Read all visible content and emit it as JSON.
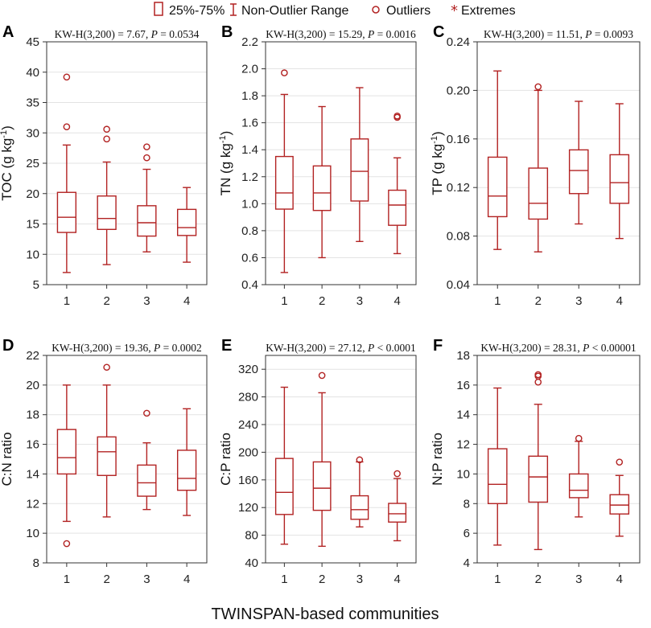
{
  "x_title": "TWINSPAN-based communities",
  "legend": [
    {
      "key": "box",
      "label": "25%-75%"
    },
    {
      "key": "whisker",
      "label": "Non-Outlier Range"
    },
    {
      "key": "outlier",
      "label": "Outliers"
    },
    {
      "key": "extreme",
      "label": "Extremes"
    }
  ],
  "colors": {
    "box": "#b22222",
    "grid": "#e3e3e3",
    "frame": "#333333"
  },
  "chart_data": [
    {
      "panel": "A",
      "type": "box",
      "ylabel": "TOC (g kg",
      "ylabel_sup": "-1",
      "ylabel_end": ")",
      "stat_prefix": "KW-H(3,200) = 7.67, ",
      "stat_p": "P",
      "stat_suffix": " = 0.0534",
      "ylim": [
        5,
        45
      ],
      "yticks": [
        5,
        10,
        15,
        20,
        25,
        30,
        35,
        40,
        45
      ],
      "ytick_labels": [
        "5",
        "10",
        "15",
        "20",
        "25",
        "30",
        "35",
        "40",
        "45"
      ],
      "categories": [
        "1",
        "2",
        "3",
        "4"
      ],
      "boxes": [
        {
          "min": 7.0,
          "q1": 13.6,
          "median": 16.1,
          "q3": 20.2,
          "max": 28.0,
          "outliers": [
            31.0,
            39.2
          ]
        },
        {
          "min": 8.3,
          "q1": 14.1,
          "median": 15.9,
          "q3": 19.6,
          "max": 25.2,
          "outliers": [
            29.0,
            30.6
          ]
        },
        {
          "min": 10.4,
          "q1": 13.0,
          "median": 15.2,
          "q3": 18.0,
          "max": 24.0,
          "outliers": [
            25.9,
            27.7
          ]
        },
        {
          "min": 8.7,
          "q1": 13.1,
          "median": 14.4,
          "q3": 17.4,
          "max": 21.0,
          "outliers": []
        }
      ]
    },
    {
      "panel": "B",
      "type": "box",
      "ylabel": "TN (g kg",
      "ylabel_sup": "-1",
      "ylabel_end": ")",
      "stat_prefix": "KW-H(3,200) = 15.29, ",
      "stat_p": "P",
      "stat_suffix": " = 0.0016",
      "ylim": [
        0.4,
        2.2
      ],
      "yticks": [
        0.4,
        0.6,
        0.8,
        1.0,
        1.2,
        1.4,
        1.6,
        1.8,
        2.0,
        2.2
      ],
      "ytick_labels": [
        "0.4",
        "0.6",
        "0.8",
        "1.0",
        "1.2",
        "1.4",
        "1.6",
        "1.8",
        "2.0",
        "2.2"
      ],
      "categories": [
        "1",
        "2",
        "3",
        "4"
      ],
      "boxes": [
        {
          "min": 0.49,
          "q1": 0.96,
          "median": 1.08,
          "q3": 1.35,
          "max": 1.81,
          "outliers": [
            1.97
          ]
        },
        {
          "min": 0.6,
          "q1": 0.95,
          "median": 1.08,
          "q3": 1.28,
          "max": 1.72,
          "outliers": []
        },
        {
          "min": 0.72,
          "q1": 1.02,
          "median": 1.24,
          "q3": 1.48,
          "max": 1.86,
          "outliers": []
        },
        {
          "min": 0.63,
          "q1": 0.84,
          "median": 0.99,
          "q3": 1.1,
          "max": 1.34,
          "outliers": [
            1.64,
            1.65
          ]
        }
      ]
    },
    {
      "panel": "C",
      "type": "box",
      "ylabel": "TP (g kg",
      "ylabel_sup": "-1",
      "ylabel_end": ")",
      "stat_prefix": "KW-H(3,200) = 11.51, ",
      "stat_p": "P",
      "stat_suffix": " = 0.0093",
      "ylim": [
        0.04,
        0.24
      ],
      "yticks": [
        0.04,
        0.08,
        0.12,
        0.16,
        0.2,
        0.24
      ],
      "ytick_labels": [
        "0.04",
        "0.08",
        "0.12",
        "0.16",
        "0.20",
        "0.24"
      ],
      "categories": [
        "1",
        "2",
        "3",
        "4"
      ],
      "boxes": [
        {
          "min": 0.069,
          "q1": 0.096,
          "median": 0.113,
          "q3": 0.145,
          "max": 0.216,
          "outliers": []
        },
        {
          "min": 0.067,
          "q1": 0.094,
          "median": 0.107,
          "q3": 0.136,
          "max": 0.2,
          "outliers": [
            0.203
          ]
        },
        {
          "min": 0.09,
          "q1": 0.115,
          "median": 0.134,
          "q3": 0.151,
          "max": 0.191,
          "outliers": []
        },
        {
          "min": 0.078,
          "q1": 0.107,
          "median": 0.124,
          "q3": 0.147,
          "max": 0.189,
          "outliers": []
        }
      ]
    },
    {
      "panel": "D",
      "type": "box",
      "ylabel": "C:N ratio",
      "ylabel_sup": "",
      "ylabel_end": "",
      "stat_prefix": "KW-H(3,200) = 19.36, ",
      "stat_p": "P",
      "stat_suffix": " = 0.0002",
      "ylim": [
        8,
        22
      ],
      "yticks": [
        8,
        10,
        12,
        14,
        16,
        18,
        20,
        22
      ],
      "ytick_labels": [
        "8",
        "10",
        "12",
        "14",
        "16",
        "18",
        "20",
        "22"
      ],
      "categories": [
        "1",
        "2",
        "3",
        "4"
      ],
      "boxes": [
        {
          "min": 10.8,
          "q1": 14.0,
          "median": 15.1,
          "q3": 17.0,
          "max": 20.0,
          "outliers": [
            9.3
          ]
        },
        {
          "min": 11.1,
          "q1": 13.9,
          "median": 15.5,
          "q3": 16.5,
          "max": 20.0,
          "outliers": [
            21.2
          ]
        },
        {
          "min": 11.6,
          "q1": 12.5,
          "median": 13.4,
          "q3": 14.6,
          "max": 16.1,
          "outliers": [
            18.1
          ]
        },
        {
          "min": 11.2,
          "q1": 12.9,
          "median": 13.7,
          "q3": 15.6,
          "max": 18.4,
          "outliers": []
        }
      ]
    },
    {
      "panel": "E",
      "type": "box",
      "ylabel": "C:P ratio",
      "ylabel_sup": "",
      "ylabel_end": "",
      "stat_prefix": "KW-H(3,200) = 27.12, ",
      "stat_p": "P",
      "stat_suffix": " < 0.0001",
      "ylim": [
        40,
        340
      ],
      "yticks": [
        40,
        80,
        120,
        160,
        200,
        240,
        280,
        320
      ],
      "ytick_labels": [
        "40",
        "80",
        "120",
        "160",
        "200",
        "240",
        "280",
        "320"
      ],
      "categories": [
        "1",
        "2",
        "3",
        "4"
      ],
      "boxes": [
        {
          "min": 67,
          "q1": 110,
          "median": 142,
          "q3": 191,
          "max": 294,
          "outliers": []
        },
        {
          "min": 64,
          "q1": 116,
          "median": 148,
          "q3": 186,
          "max": 286,
          "outliers": [
            311
          ]
        },
        {
          "min": 92,
          "q1": 103,
          "median": 117,
          "q3": 137,
          "max": 186,
          "outliers": [
            189
          ]
        },
        {
          "min": 72,
          "q1": 99,
          "median": 111,
          "q3": 126,
          "max": 162,
          "outliers": [
            169
          ]
        }
      ]
    },
    {
      "panel": "F",
      "type": "box",
      "ylabel": "N:P ratio",
      "ylabel_sup": "",
      "ylabel_end": "",
      "stat_prefix": "KW-H(3,200) = 28.31, ",
      "stat_p": "P",
      "stat_suffix": " < 0.00001",
      "ylim": [
        4,
        18
      ],
      "yticks": [
        4,
        6,
        8,
        10,
        12,
        14,
        16,
        18
      ],
      "ytick_labels": [
        "4",
        "6",
        "8",
        "10",
        "12",
        "14",
        "16",
        "18"
      ],
      "categories": [
        "1",
        "2",
        "3",
        "4"
      ],
      "boxes": [
        {
          "min": 5.2,
          "q1": 8.0,
          "median": 9.3,
          "q3": 11.7,
          "max": 15.8,
          "outliers": []
        },
        {
          "min": 4.9,
          "q1": 8.1,
          "median": 9.8,
          "q3": 11.2,
          "max": 14.7,
          "outliers": [
            16.2,
            16.6,
            16.7
          ]
        },
        {
          "min": 7.1,
          "q1": 8.4,
          "median": 8.9,
          "q3": 10.0,
          "max": 12.2,
          "outliers": [
            12.4
          ]
        },
        {
          "min": 5.8,
          "q1": 7.3,
          "median": 7.9,
          "q3": 8.6,
          "max": 9.9,
          "outliers": [
            10.8
          ]
        }
      ]
    }
  ]
}
